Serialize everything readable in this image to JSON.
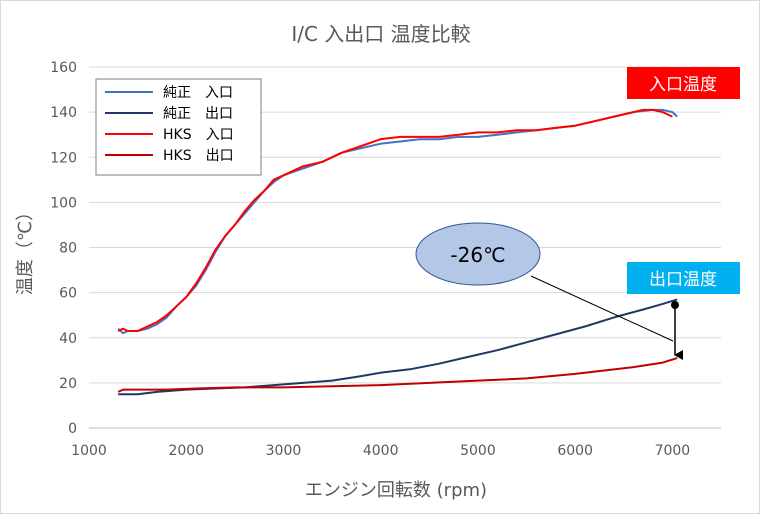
{
  "chart_data": {
    "type": "line",
    "title": "I/C 入出口 温度比較",
    "xlabel": "エンジン回転数 (rpm)",
    "ylabel": "温度（℃）",
    "xlim": [
      1000,
      7500
    ],
    "ylim": [
      0,
      160
    ],
    "x_ticks": [
      "1000",
      "2000",
      "3000",
      "4000",
      "5000",
      "6000",
      "7000"
    ],
    "y_ticks": [
      "0",
      "20",
      "40",
      "60",
      "80",
      "100",
      "120",
      "140",
      "160"
    ],
    "grid": "horizontal",
    "legend_position": "top-left",
    "series": [
      {
        "name": "純正　入口",
        "color": "#4472C4",
        "points": [
          [
            1300,
            44
          ],
          [
            1350,
            42
          ],
          [
            1400,
            43
          ],
          [
            1500,
            43
          ],
          [
            1600,
            44
          ],
          [
            1700,
            46
          ],
          [
            1800,
            49
          ],
          [
            1900,
            54
          ],
          [
            2000,
            58
          ],
          [
            2100,
            63
          ],
          [
            2200,
            70
          ],
          [
            2300,
            78
          ],
          [
            2400,
            85
          ],
          [
            2500,
            90
          ],
          [
            2600,
            95
          ],
          [
            2700,
            100
          ],
          [
            2800,
            105
          ],
          [
            2900,
            109
          ],
          [
            3000,
            112
          ],
          [
            3200,
            115
          ],
          [
            3400,
            118
          ],
          [
            3600,
            122
          ],
          [
            3800,
            124
          ],
          [
            4000,
            126
          ],
          [
            4200,
            127
          ],
          [
            4400,
            128
          ],
          [
            4600,
            128
          ],
          [
            4800,
            129
          ],
          [
            5000,
            129
          ],
          [
            5200,
            130
          ],
          [
            5400,
            131
          ],
          [
            5600,
            132
          ],
          [
            5800,
            133
          ],
          [
            6000,
            134
          ],
          [
            6200,
            136
          ],
          [
            6400,
            138
          ],
          [
            6600,
            140
          ],
          [
            6800,
            141
          ],
          [
            6900,
            141
          ],
          [
            7000,
            140
          ],
          [
            7050,
            138
          ]
        ]
      },
      {
        "name": "純正　出口",
        "color": "#1F3864",
        "points": [
          [
            1300,
            15
          ],
          [
            1500,
            15
          ],
          [
            1700,
            16
          ],
          [
            2000,
            17
          ],
          [
            2300,
            17.5
          ],
          [
            2600,
            18
          ],
          [
            2900,
            19
          ],
          [
            3200,
            20
          ],
          [
            3500,
            21
          ],
          [
            3800,
            23
          ],
          [
            4000,
            24.5
          ],
          [
            4300,
            26
          ],
          [
            4600,
            28.5
          ],
          [
            4900,
            31.5
          ],
          [
            5200,
            34.5
          ],
          [
            5500,
            38
          ],
          [
            5800,
            41.5
          ],
          [
            6100,
            45
          ],
          [
            6400,
            49
          ],
          [
            6700,
            52.5
          ],
          [
            6900,
            55
          ],
          [
            7050,
            57
          ]
        ]
      },
      {
        "name": "HKS　入口",
        "color": "#FF0000",
        "points": [
          [
            1300,
            43
          ],
          [
            1350,
            44
          ],
          [
            1400,
            43
          ],
          [
            1500,
            43
          ],
          [
            1600,
            45
          ],
          [
            1700,
            47
          ],
          [
            1800,
            50
          ],
          [
            1900,
            54
          ],
          [
            2000,
            58
          ],
          [
            2100,
            64
          ],
          [
            2200,
            71
          ],
          [
            2300,
            79
          ],
          [
            2400,
            85
          ],
          [
            2500,
            90
          ],
          [
            2600,
            96
          ],
          [
            2700,
            101
          ],
          [
            2800,
            105
          ],
          [
            2900,
            110
          ],
          [
            3000,
            112
          ],
          [
            3200,
            116
          ],
          [
            3400,
            118
          ],
          [
            3600,
            122
          ],
          [
            3800,
            125
          ],
          [
            4000,
            128
          ],
          [
            4200,
            129
          ],
          [
            4400,
            129
          ],
          [
            4600,
            129
          ],
          [
            4800,
            130
          ],
          [
            5000,
            131
          ],
          [
            5200,
            131
          ],
          [
            5400,
            132
          ],
          [
            5600,
            132
          ],
          [
            5800,
            133
          ],
          [
            6000,
            134
          ],
          [
            6200,
            136
          ],
          [
            6400,
            138
          ],
          [
            6600,
            140
          ],
          [
            6700,
            141
          ],
          [
            6800,
            141
          ],
          [
            6900,
            140
          ],
          [
            7000,
            138
          ]
        ]
      },
      {
        "name": "HKS　出口",
        "color": "#C00000",
        "points": [
          [
            1300,
            16
          ],
          [
            1350,
            17
          ],
          [
            1500,
            17
          ],
          [
            1800,
            17
          ],
          [
            2100,
            17.5
          ],
          [
            2500,
            18
          ],
          [
            3000,
            18
          ],
          [
            3500,
            18.5
          ],
          [
            4000,
            19
          ],
          [
            4500,
            20
          ],
          [
            5000,
            21
          ],
          [
            5500,
            22
          ],
          [
            6000,
            24
          ],
          [
            6300,
            25.5
          ],
          [
            6600,
            27
          ],
          [
            6900,
            29
          ],
          [
            7050,
            31
          ]
        ]
      }
    ],
    "annotations": {
      "inlet_label": "入口温度",
      "outlet_label": "出口温度",
      "difference_label": "-26℃",
      "inlet_color": "#FF0000",
      "outlet_color": "#00B0F0",
      "bubble_color": "#B4C7E7"
    }
  }
}
